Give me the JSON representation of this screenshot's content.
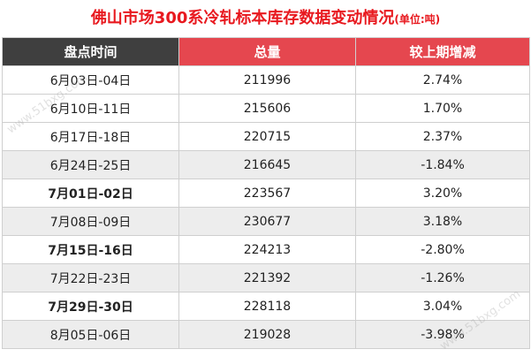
{
  "title": {
    "main": "佛山市场300系冷轧标本库存数据变动情况",
    "unit": "(单位:吨)"
  },
  "watermark": "www.51bxg.com",
  "chart_data": {
    "type": "table",
    "columns": [
      "盘点时间",
      "总量",
      "较上期增减"
    ],
    "rows": [
      {
        "period": "6月03日-04日",
        "total": "211996",
        "change": "2.74%"
      },
      {
        "period": "6月10日-11日",
        "total": "215606",
        "change": "1.70%"
      },
      {
        "period": "6月17日-18日",
        "total": "220715",
        "change": "2.37%"
      },
      {
        "period": "6月24日-25日",
        "total": "216645",
        "change": "-1.84%"
      },
      {
        "period": "7月01日-02日",
        "total": "223567",
        "change": "3.20%"
      },
      {
        "period": "7月08日-09日",
        "total": "230677",
        "change": "3.18%"
      },
      {
        "period": "7月15日-16日",
        "total": "224213",
        "change": "-2.80%"
      },
      {
        "period": "7月22日-23日",
        "total": "221392",
        "change": "-1.26%"
      },
      {
        "period": "7月29日-30日",
        "total": "228118",
        "change": "3.04%"
      },
      {
        "period": "8月05日-06日",
        "total": "219028",
        "change": "-3.98%"
      }
    ]
  }
}
